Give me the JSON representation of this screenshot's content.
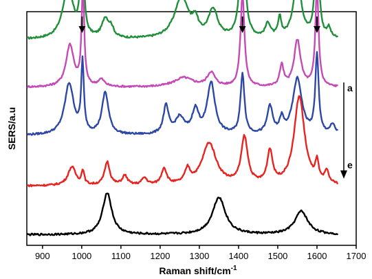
{
  "chart_data": {
    "type": "line",
    "title": "",
    "xlabel": "Raman shift/cm",
    "xlabel_superscript": "-1",
    "ylabel": "SERS/a.u",
    "xlim": [
      860,
      1700
    ],
    "x_ticks": [
      900,
      1000,
      1100,
      1200,
      1300,
      1400,
      1500,
      1600,
      1700
    ],
    "y_ticks_shown": false,
    "grid": false,
    "series_order_label_top": "a",
    "series_order_label_bottom": "e",
    "marked_peaks": [
      1001,
      1410,
      1600
    ],
    "series": [
      {
        "color": "#1f8f3a",
        "baseline": 0.88,
        "peaks": [
          [
            965,
            0.22,
            16
          ],
          [
            1001,
            0.58,
            4
          ],
          [
            1060,
            0.08,
            10
          ],
          [
            1075,
            0.04,
            8
          ],
          [
            1255,
            0.18,
            22
          ],
          [
            1290,
            0.06,
            8
          ],
          [
            1335,
            0.12,
            14
          ],
          [
            1410,
            0.54,
            7
          ],
          [
            1475,
            0.06,
            8
          ],
          [
            1505,
            0.08,
            5
          ],
          [
            1550,
            0.26,
            12
          ],
          [
            1600,
            0.56,
            5
          ],
          [
            1630,
            0.04,
            6
          ]
        ]
      },
      {
        "color": "#c44bb6",
        "baseline": 0.676,
        "peaks": [
          [
            970,
            0.18,
            12
          ],
          [
            1003,
            0.42,
            4
          ],
          [
            1050,
            0.03,
            10
          ],
          [
            1260,
            0.04,
            30
          ],
          [
            1330,
            0.06,
            12
          ],
          [
            1410,
            0.4,
            6
          ],
          [
            1510,
            0.09,
            6
          ],
          [
            1550,
            0.2,
            10
          ],
          [
            1600,
            0.42,
            5
          ]
        ]
      },
      {
        "color": "#2c47a6",
        "baseline": 0.47,
        "peaks": [
          [
            968,
            0.22,
            14
          ],
          [
            1002,
            0.3,
            4
          ],
          [
            1060,
            0.18,
            10
          ],
          [
            1215,
            0.12,
            8
          ],
          [
            1250,
            0.07,
            14
          ],
          [
            1290,
            0.1,
            10
          ],
          [
            1330,
            0.22,
            12
          ],
          [
            1410,
            0.26,
            6
          ],
          [
            1480,
            0.12,
            8
          ],
          [
            1510,
            0.06,
            6
          ],
          [
            1550,
            0.24,
            14
          ],
          [
            1600,
            0.34,
            5
          ],
          [
            1640,
            0.04,
            8
          ]
        ]
      },
      {
        "color": "#e8231f",
        "baseline": 0.254,
        "peaks": [
          [
            975,
            0.08,
            12
          ],
          [
            1003,
            0.06,
            4
          ],
          [
            1065,
            0.1,
            8
          ],
          [
            1110,
            0.04,
            8
          ],
          [
            1160,
            0.03,
            8
          ],
          [
            1210,
            0.07,
            8
          ],
          [
            1270,
            0.06,
            8
          ],
          [
            1325,
            0.18,
            22
          ],
          [
            1415,
            0.2,
            10
          ],
          [
            1480,
            0.14,
            8
          ],
          [
            1555,
            0.38,
            16
          ],
          [
            1600,
            0.08,
            5
          ],
          [
            1625,
            0.05,
            6
          ]
        ]
      },
      {
        "color": "#000000",
        "baseline": 0.045,
        "peaks": [
          [
            1065,
            0.18,
            14
          ],
          [
            1350,
            0.16,
            20
          ],
          [
            1560,
            0.1,
            20
          ]
        ]
      }
    ]
  }
}
